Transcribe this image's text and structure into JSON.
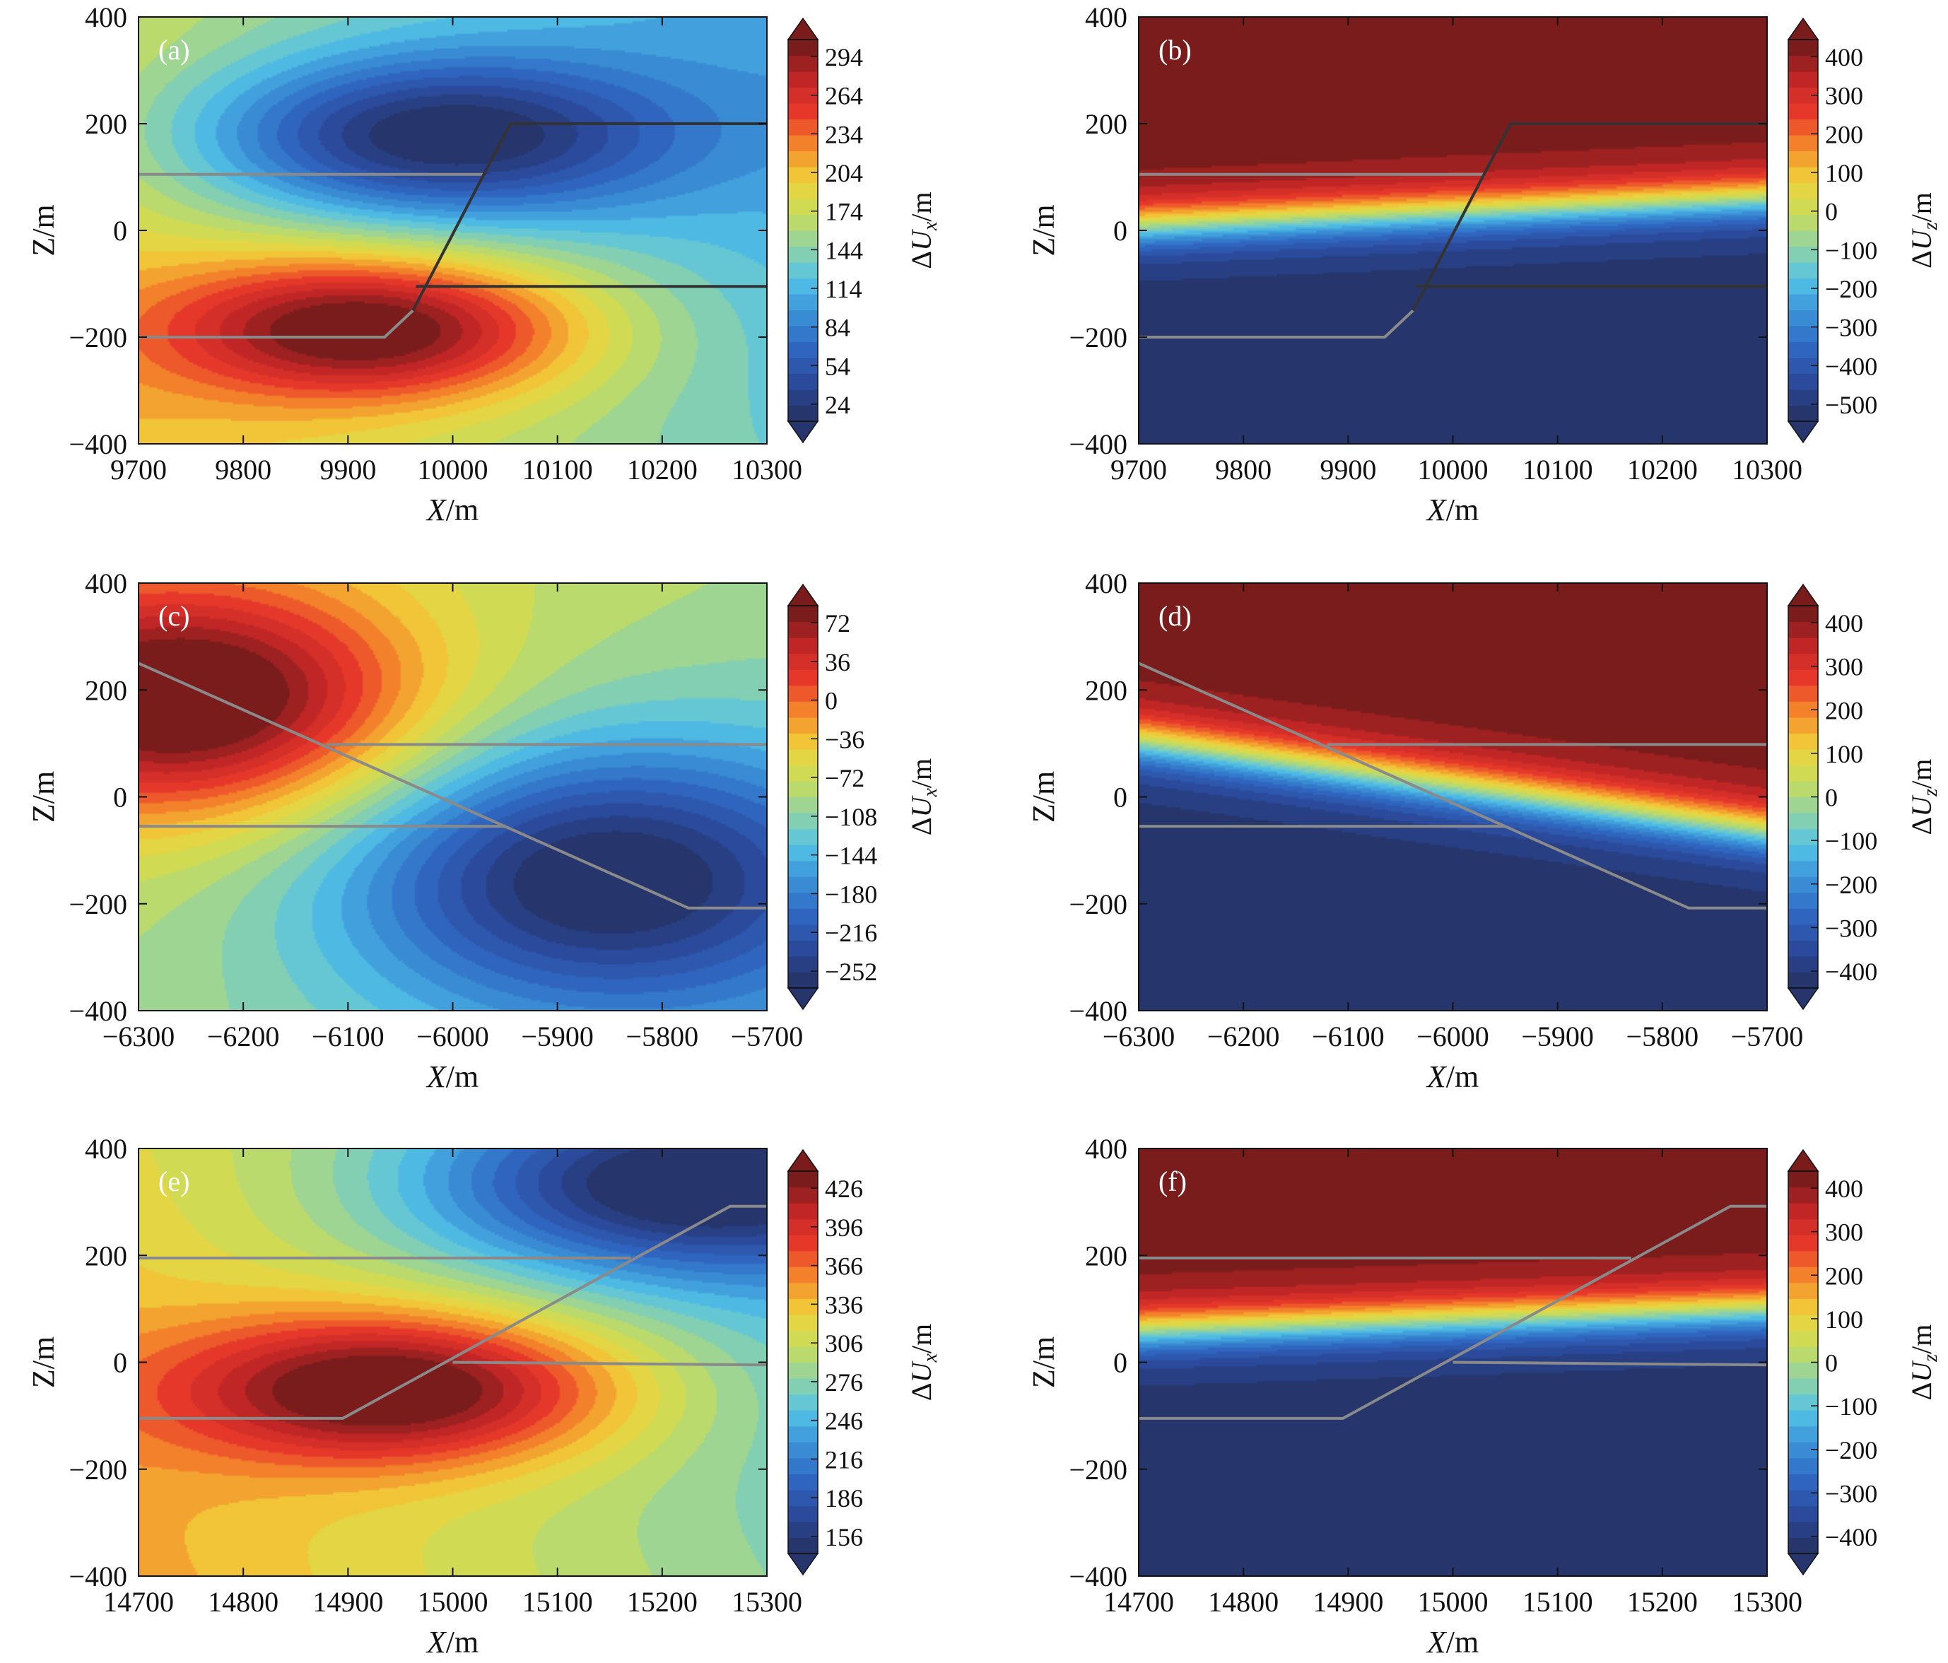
{
  "figure": {
    "colors": {
      "jet": [
        "#26356b",
        "#2b4b9e",
        "#2f68c2",
        "#3a90d6",
        "#52c2e6",
        "#8fd3a6",
        "#c9dc5a",
        "#f0d23a",
        "#f58a2a",
        "#e83a2a",
        "#c42626",
        "#7a1c1c"
      ],
      "fault_light": "#8a8a8a",
      "fault_dark": "#333333"
    }
  },
  "chart_data": [
    {
      "id": "a",
      "type": "heatmap",
      "panel_label": "(a)",
      "xlabel_var": "X",
      "xlabel_unit": "/m",
      "ylabel": "Z/m",
      "cb_label_main": "ΔU",
      "cb_label_sub": "x",
      "cb_label_unit": "/m",
      "xlim": [
        9700,
        10300
      ],
      "ylim": [
        -400,
        400
      ],
      "x_ticks": [
        "9700",
        "9800",
        "9900",
        "10000",
        "10100",
        "10200",
        "10300"
      ],
      "y_ticks": [
        "400",
        "200",
        "0",
        "−200",
        "−400"
      ],
      "cb_range": [
        24,
        294
      ],
      "cb_ticks": [
        "294",
        "264",
        "234",
        "204",
        "174",
        "144",
        "114",
        "84",
        "54",
        "24"
      ],
      "field": {
        "kind": "dipole",
        "cx": 9960,
        "cz": -40,
        "sx": 140,
        "sz": 95,
        "pos_dx": -35,
        "pos_dz": -145,
        "neg_dx": 20,
        "neg_dz": 215,
        "pos_amp": 1.05,
        "neg_amp": 1.0,
        "gx": -0.12,
        "gz": -0.05
      },
      "faults": [
        {
          "color": "light",
          "points": [
            [
              9700,
              105
            ],
            [
              10030,
              105
            ]
          ]
        },
        {
          "color": "light",
          "points": [
            [
              9700,
              -200
            ],
            [
              9935,
              -200
            ],
            [
              9962,
              -150
            ]
          ]
        },
        {
          "color": "dark",
          "points": [
            [
              9962,
              -150
            ],
            [
              10055,
              200
            ],
            [
              10300,
              200
            ]
          ]
        },
        {
          "color": "dark",
          "points": [
            [
              9965,
              -105
            ],
            [
              10300,
              -105
            ]
          ]
        }
      ]
    },
    {
      "id": "b",
      "type": "heatmap",
      "panel_label": "(b)",
      "xlabel_var": "X",
      "xlabel_unit": "/m",
      "ylabel": "Z/m",
      "cb_label_main": "ΔU",
      "cb_label_sub": "z",
      "cb_label_unit": "/m",
      "xlim": [
        9700,
        10300
      ],
      "ylim": [
        -400,
        400
      ],
      "x_ticks": [
        "9700",
        "9800",
        "9900",
        "10000",
        "10100",
        "10200",
        "10300"
      ],
      "y_ticks": [
        "400",
        "200",
        "0",
        "−200",
        "−400"
      ],
      "cb_range": [
        -500,
        470
      ],
      "cb_ticks": [
        "400",
        "300",
        "200",
        "100",
        "0",
        "−100",
        "−200",
        "−300",
        "−400",
        "−500"
      ],
      "field": {
        "kind": "band",
        "z0": 35,
        "slope": 0.12,
        "cx": 10000,
        "width": 55,
        "tilt": 0.06
      },
      "faults": [
        {
          "color": "light",
          "points": [
            [
              9700,
              105
            ],
            [
              10030,
              105
            ]
          ]
        },
        {
          "color": "light",
          "points": [
            [
              9700,
              -200
            ],
            [
              9935,
              -200
            ],
            [
              9962,
              -150
            ]
          ]
        },
        {
          "color": "dark",
          "points": [
            [
              9962,
              -150
            ],
            [
              10055,
              200
            ],
            [
              10300,
              200
            ]
          ]
        },
        {
          "color": "dark",
          "points": [
            [
              9965,
              -105
            ],
            [
              10300,
              -105
            ]
          ]
        }
      ]
    },
    {
      "id": "c",
      "type": "heatmap",
      "panel_label": "(c)",
      "xlabel_var": "X",
      "xlabel_unit": "/m",
      "ylabel": "Z/m",
      "cb_label_main": "ΔU",
      "cb_label_sub": "x",
      "cb_label_unit": "/m",
      "xlim": [
        -6300,
        -5700
      ],
      "ylim": [
        -400,
        400
      ],
      "x_ticks": [
        "−6300",
        "−6200",
        "−6100",
        "−6000",
        "−5900",
        "−5800",
        "−5700"
      ],
      "y_ticks": [
        "400",
        "200",
        "0",
        "−200",
        "−400"
      ],
      "cb_range": [
        -270,
        90
      ],
      "cb_ticks": [
        "72",
        "36",
        "0",
        "−36",
        "−72",
        "−108",
        "−144",
        "−180",
        "−216",
        "−252"
      ],
      "field": {
        "kind": "dipole",
        "cx": -6030,
        "cz": 20,
        "sx": 150,
        "sz": 150,
        "pos_dx": -220,
        "pos_dz": 160,
        "neg_dx": 170,
        "neg_dz": -170,
        "pos_amp": 1.1,
        "neg_amp": 1.0,
        "gx": -0.05,
        "gz": 0.05
      },
      "faults": [
        {
          "color": "light",
          "points": [
            [
              -6300,
              250
            ],
            [
              -5775,
              -208
            ],
            [
              -5700,
              -208
            ]
          ]
        },
        {
          "color": "light",
          "points": [
            [
              -6120,
              98
            ],
            [
              -5700,
              98
            ]
          ]
        },
        {
          "color": "light",
          "points": [
            [
              -6300,
              -55
            ],
            [
              -5950,
              -55
            ]
          ]
        }
      ]
    },
    {
      "id": "d",
      "type": "heatmap",
      "panel_label": "(d)",
      "xlabel_var": "X",
      "xlabel_unit": "/m",
      "ylabel": "Z/m",
      "cb_label_main": "ΔU",
      "cb_label_sub": "z",
      "cb_label_unit": "/m",
      "xlim": [
        -6300,
        -5700
      ],
      "ylim": [
        -400,
        400
      ],
      "x_ticks": [
        "−6300",
        "−6200",
        "−6100",
        "−6000",
        "−5900",
        "−5800",
        "−5700"
      ],
      "y_ticks": [
        "400",
        "200",
        "0",
        "−200",
        "−400"
      ],
      "cb_range": [
        -500,
        470
      ],
      "cb_ticks": [
        "400",
        "300",
        "200",
        "100",
        "0",
        "−100",
        "−200",
        "−300",
        "−400"
      ],
      "field": {
        "kind": "band",
        "z0": 20,
        "slope": -0.25,
        "cx": -6000,
        "width": 60,
        "tilt": 0.05
      },
      "faults": [
        {
          "color": "light",
          "points": [
            [
              -6300,
              250
            ],
            [
              -5775,
              -208
            ],
            [
              -5700,
              -208
            ]
          ]
        },
        {
          "color": "light",
          "points": [
            [
              -6120,
              98
            ],
            [
              -5700,
              98
            ]
          ]
        },
        {
          "color": "light",
          "points": [
            [
              -6300,
              -55
            ],
            [
              -5950,
              -55
            ]
          ]
        }
      ]
    },
    {
      "id": "e",
      "type": "heatmap",
      "panel_label": "(e)",
      "xlabel_var": "X",
      "xlabel_unit": "/m",
      "ylabel": "Z/m",
      "cb_label_main": "ΔU",
      "cb_label_sub": "x",
      "cb_label_unit": "/m",
      "xlim": [
        14700,
        15300
      ],
      "ylim": [
        -400,
        400
      ],
      "x_ticks": [
        "14700",
        "14800",
        "14900",
        "15000",
        "15100",
        "15200",
        "15300"
      ],
      "y_ticks": [
        "400",
        "200",
        "0",
        "−200",
        "−400"
      ],
      "cb_range": [
        156,
        426
      ],
      "cb_ticks": [
        "426",
        "396",
        "366",
        "336",
        "306",
        "276",
        "246",
        "216",
        "186",
        "156"
      ],
      "field": {
        "kind": "dipole",
        "cx": 15050,
        "cz": 50,
        "sx": 150,
        "sz": 100,
        "pos_dx": -100,
        "pos_dz": -100,
        "neg_dx": 170,
        "neg_dz": 280,
        "pos_amp": 1.05,
        "neg_amp": 0.95,
        "gx": -0.12,
        "gz": -0.05
      },
      "faults": [
        {
          "color": "light",
          "points": [
            [
              14700,
              195
            ],
            [
              15170,
              195
            ]
          ]
        },
        {
          "color": "light",
          "points": [
            [
              14700,
              -105
            ],
            [
              14895,
              -105
            ],
            [
              15265,
              292
            ],
            [
              15300,
              292
            ]
          ]
        },
        {
          "color": "light",
          "points": [
            [
              15000,
              0
            ],
            [
              15300,
              -5
            ]
          ]
        }
      ]
    },
    {
      "id": "f",
      "type": "heatmap",
      "panel_label": "(f)",
      "xlabel_var": "X",
      "xlabel_unit": "/m",
      "ylabel": "Z/m",
      "cb_label_main": "ΔU",
      "cb_label_sub": "z",
      "cb_label_unit": "/m",
      "xlim": [
        14700,
        15300
      ],
      "ylim": [
        -400,
        400
      ],
      "x_ticks": [
        "14700",
        "14800",
        "14900",
        "15000",
        "15100",
        "15200",
        "15300"
      ],
      "y_ticks": [
        "400",
        "200",
        "0",
        "−200",
        "−400"
      ],
      "cb_range": [
        -500,
        470
      ],
      "cb_ticks": [
        "400",
        "300",
        "200",
        "100",
        "0",
        "−100",
        "−200",
        "−300",
        "−400"
      ],
      "field": {
        "kind": "band",
        "z0": 80,
        "slope": 0.1,
        "cx": 15000,
        "width": 55,
        "tilt": 0.06
      },
      "faults": [
        {
          "color": "light",
          "points": [
            [
              14700,
              195
            ],
            [
              15170,
              195
            ]
          ]
        },
        {
          "color": "light",
          "points": [
            [
              14700,
              -105
            ],
            [
              14895,
              -105
            ],
            [
              15265,
              292
            ],
            [
              15300,
              292
            ]
          ]
        },
        {
          "color": "light",
          "points": [
            [
              15000,
              0
            ],
            [
              15300,
              -5
            ]
          ]
        }
      ]
    }
  ]
}
